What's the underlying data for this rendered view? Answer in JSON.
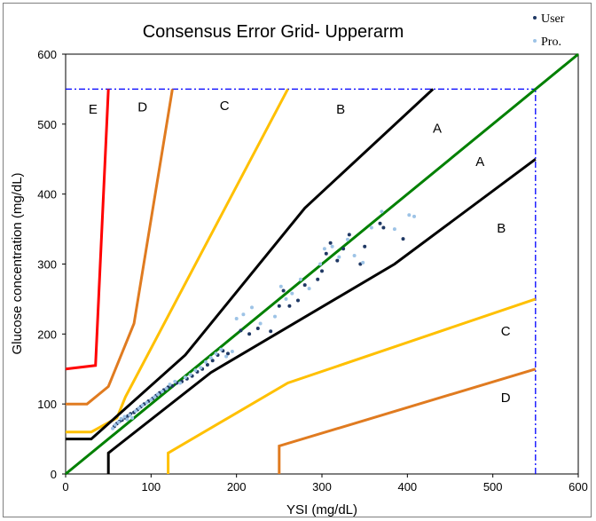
{
  "chart_data": {
    "type": "scatter",
    "title": "Consensus Error Grid- Upperarm",
    "xlabel": "YSI (mg/dL)",
    "ylabel": "Glucose concentration (mg/dL)",
    "xlim": [
      0,
      600
    ],
    "ylim": [
      0,
      600
    ],
    "xticks": [
      "0",
      "100",
      "200",
      "300",
      "400",
      "500",
      "600"
    ],
    "yticks": [
      "0",
      "100",
      "200",
      "300",
      "400",
      "500",
      "600"
    ],
    "legend": {
      "placement": "top-right",
      "entries": [
        "User",
        "Pro."
      ]
    },
    "series": [
      {
        "name": "User",
        "color": "#1f3864",
        "points": [
          [
            57,
            68
          ],
          [
            60,
            72
          ],
          [
            63,
            75
          ],
          [
            66,
            77
          ],
          [
            70,
            80
          ],
          [
            73,
            83
          ],
          [
            76,
            86
          ],
          [
            80,
            88
          ],
          [
            84,
            92
          ],
          [
            88,
            96
          ],
          [
            92,
            100
          ],
          [
            97,
            104
          ],
          [
            102,
            108
          ],
          [
            106,
            112
          ],
          [
            110,
            116
          ],
          [
            115,
            120
          ],
          [
            120,
            124
          ],
          [
            125,
            126
          ],
          [
            130,
            130
          ],
          [
            136,
            132
          ],
          [
            142,
            136
          ],
          [
            148,
            140
          ],
          [
            154,
            146
          ],
          [
            160,
            150
          ],
          [
            166,
            156
          ],
          [
            172,
            162
          ],
          [
            178,
            170
          ],
          [
            184,
            176
          ],
          [
            190,
            172
          ],
          [
            205,
            205
          ],
          [
            215,
            200
          ],
          [
            225,
            208
          ],
          [
            240,
            204
          ],
          [
            250,
            240
          ],
          [
            255,
            262
          ],
          [
            262,
            240
          ],
          [
            272,
            248
          ],
          [
            280,
            270
          ],
          [
            295,
            278
          ],
          [
            300,
            290
          ],
          [
            305,
            315
          ],
          [
            310,
            330
          ],
          [
            318,
            305
          ],
          [
            325,
            322
          ],
          [
            332,
            342
          ],
          [
            345,
            300
          ],
          [
            350,
            325
          ],
          [
            368,
            358
          ],
          [
            372,
            352
          ],
          [
            395,
            336
          ]
        ]
      },
      {
        "name": "Pro.",
        "color": "#9dc3e6",
        "points": [
          [
            55,
            65
          ],
          [
            58,
            70
          ],
          [
            62,
            74
          ],
          [
            65,
            79
          ],
          [
            69,
            82
          ],
          [
            72,
            78
          ],
          [
            75,
            84
          ],
          [
            78,
            80
          ],
          [
            82,
            90
          ],
          [
            86,
            94
          ],
          [
            90,
            98
          ],
          [
            95,
            102
          ],
          [
            100,
            106
          ],
          [
            104,
            110
          ],
          [
            108,
            114
          ],
          [
            113,
            118
          ],
          [
            118,
            122
          ],
          [
            122,
            128
          ],
          [
            128,
            132
          ],
          [
            134,
            130
          ],
          [
            140,
            138
          ],
          [
            146,
            142
          ],
          [
            152,
            148
          ],
          [
            158,
            152
          ],
          [
            164,
            160
          ],
          [
            170,
            166
          ],
          [
            176,
            172
          ],
          [
            182,
            178
          ],
          [
            188,
            168
          ],
          [
            195,
            175
          ],
          [
            200,
            222
          ],
          [
            208,
            228
          ],
          [
            218,
            238
          ],
          [
            228,
            215
          ],
          [
            245,
            225
          ],
          [
            252,
            268
          ],
          [
            258,
            250
          ],
          [
            265,
            258
          ],
          [
            275,
            278
          ],
          [
            285,
            265
          ],
          [
            298,
            300
          ],
          [
            303,
            322
          ],
          [
            312,
            325
          ],
          [
            320,
            310
          ],
          [
            330,
            335
          ],
          [
            338,
            312
          ],
          [
            348,
            302
          ],
          [
            358,
            352
          ],
          [
            370,
            375
          ],
          [
            385,
            350
          ],
          [
            402,
            370
          ],
          [
            408,
            368
          ]
        ]
      }
    ],
    "zone_lines": {
      "identity": {
        "color": "#008000",
        "points": [
          [
            0,
            0
          ],
          [
            600,
            600
          ]
        ]
      },
      "A": {
        "color": "#000000",
        "segments": [
          [
            [
              0,
              50
            ],
            [
              30,
              50
            ],
            [
              140,
              170
            ],
            [
              280,
              380
            ],
            [
              430,
              550
            ]
          ],
          [
            [
              50,
              0
            ],
            [
              50,
              30
            ],
            [
              170,
              145
            ],
            [
              385,
              300
            ],
            [
              550,
              450
            ]
          ]
        ]
      },
      "B": {
        "color": "#ffc000",
        "segments": [
          [
            [
              0,
              60
            ],
            [
              30,
              60
            ],
            [
              60,
              80
            ],
            [
              70,
              110
            ],
            [
              260,
              550
            ]
          ],
          [
            [
              120,
              0
            ],
            [
              120,
              30
            ],
            [
              260,
              130
            ],
            [
              550,
              250
            ]
          ]
        ]
      },
      "C": {
        "color": "#e07b20",
        "segments": [
          [
            [
              0,
              100
            ],
            [
              25,
              100
            ],
            [
              50,
              125
            ],
            [
              80,
              215
            ],
            [
              125,
              550
            ]
          ],
          [
            [
              250,
              0
            ],
            [
              250,
              40
            ],
            [
              550,
              150
            ]
          ]
        ]
      },
      "D": {
        "color": "#ff0000",
        "segments": [
          [
            [
              0,
              150
            ],
            [
              35,
              155
            ],
            [
              50,
              550
            ]
          ]
        ]
      },
      "bounds": {
        "color": "#0000ff",
        "segments": [
          [
            [
              0,
              550
            ],
            [
              550,
              550
            ]
          ],
          [
            [
              550,
              0
            ],
            [
              550,
              550
            ]
          ]
        ]
      }
    },
    "zone_labels": [
      {
        "text": "E",
        "x": 32,
        "y": 515
      },
      {
        "text": "D",
        "x": 90,
        "y": 518
      },
      {
        "text": "C",
        "x": 186,
        "y": 520
      },
      {
        "text": "B",
        "x": 322,
        "y": 515
      },
      {
        "text": "A",
        "x": 435,
        "y": 488
      },
      {
        "text": "A",
        "x": 485,
        "y": 440
      },
      {
        "text": "B",
        "x": 510,
        "y": 345
      },
      {
        "text": "C",
        "x": 515,
        "y": 198
      },
      {
        "text": "D",
        "x": 515,
        "y": 103
      }
    ]
  }
}
